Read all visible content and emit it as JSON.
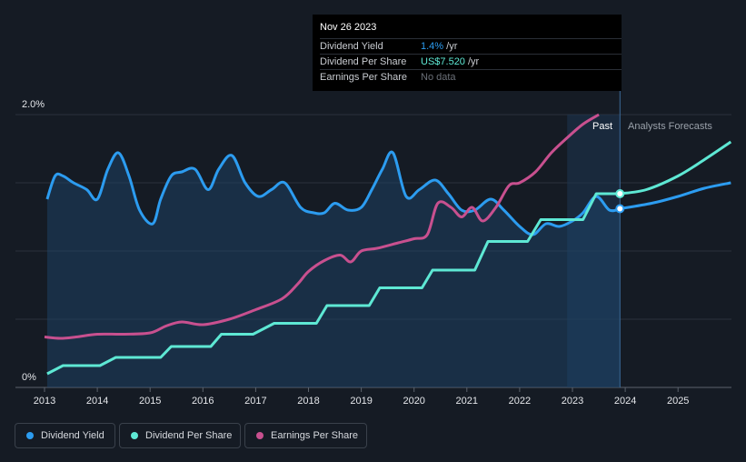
{
  "tooltip": {
    "date": "Nov 26 2023",
    "rows": [
      {
        "label": "Dividend Yield",
        "value": "1.4%",
        "unit": " /yr",
        "color": "#2c9cf0"
      },
      {
        "label": "Dividend Per Share",
        "value": "US$7.520",
        "unit": " /yr",
        "color": "#5ee8d4"
      },
      {
        "label": "Earnings Per Share",
        "value": "No data",
        "unit": "",
        "color": "#6b7078"
      }
    ]
  },
  "legend": [
    {
      "label": "Dividend Yield",
      "color": "#2c9cf0"
    },
    {
      "label": "Dividend Per Share",
      "color": "#5ee8d4"
    },
    {
      "label": "Earnings Per Share",
      "color": "#c8508f"
    }
  ],
  "chart_data": {
    "type": "line",
    "x_ticks": [
      "2013",
      "2014",
      "2015",
      "2016",
      "2017",
      "2018",
      "2019",
      "2020",
      "2021",
      "2022",
      "2023",
      "2024",
      "2025"
    ],
    "y_ticks": [
      "2.0%",
      "0%"
    ],
    "ylim": [
      0,
      2.0
    ],
    "regions": {
      "past": "Past",
      "forecast": "Analysts Forecasts"
    },
    "forecast_start": 2023.9,
    "past_shade_start": 2022.9,
    "series": [
      {
        "name": "Dividend Yield",
        "color": "#2c9cf0",
        "fill": true,
        "points": [
          [
            2013.05,
            1.38
          ],
          [
            2013.2,
            1.55
          ],
          [
            2013.35,
            1.55
          ],
          [
            2013.55,
            1.5
          ],
          [
            2013.8,
            1.45
          ],
          [
            2014.0,
            1.38
          ],
          [
            2014.2,
            1.6
          ],
          [
            2014.4,
            1.72
          ],
          [
            2014.6,
            1.55
          ],
          [
            2014.8,
            1.3
          ],
          [
            2015.05,
            1.2
          ],
          [
            2015.2,
            1.38
          ],
          [
            2015.4,
            1.55
          ],
          [
            2015.6,
            1.58
          ],
          [
            2015.85,
            1.6
          ],
          [
            2016.1,
            1.45
          ],
          [
            2016.3,
            1.6
          ],
          [
            2016.55,
            1.7
          ],
          [
            2016.8,
            1.5
          ],
          [
            2017.05,
            1.4
          ],
          [
            2017.3,
            1.45
          ],
          [
            2017.55,
            1.5
          ],
          [
            2017.85,
            1.32
          ],
          [
            2018.1,
            1.28
          ],
          [
            2018.3,
            1.28
          ],
          [
            2018.5,
            1.35
          ],
          [
            2018.75,
            1.3
          ],
          [
            2019.0,
            1.32
          ],
          [
            2019.2,
            1.45
          ],
          [
            2019.4,
            1.6
          ],
          [
            2019.6,
            1.72
          ],
          [
            2019.85,
            1.4
          ],
          [
            2020.1,
            1.45
          ],
          [
            2020.4,
            1.52
          ],
          [
            2020.65,
            1.42
          ],
          [
            2020.9,
            1.3
          ],
          [
            2021.15,
            1.3
          ],
          [
            2021.45,
            1.38
          ],
          [
            2021.7,
            1.3
          ],
          [
            2022.0,
            1.18
          ],
          [
            2022.25,
            1.12
          ],
          [
            2022.5,
            1.2
          ],
          [
            2022.75,
            1.18
          ],
          [
            2023.0,
            1.22
          ],
          [
            2023.2,
            1.28
          ],
          [
            2023.45,
            1.4
          ],
          [
            2023.7,
            1.3
          ],
          [
            2023.9,
            1.31
          ]
        ],
        "forecast": [
          [
            2023.9,
            1.31
          ],
          [
            2024.5,
            1.35
          ],
          [
            2025.0,
            1.4
          ],
          [
            2025.5,
            1.46
          ],
          [
            2026.0,
            1.5
          ]
        ]
      },
      {
        "name": "Dividend Per Share",
        "color": "#5ee8d4",
        "fill": false,
        "points": [
          [
            2013.05,
            0.1
          ],
          [
            2013.35,
            0.16
          ],
          [
            2014.05,
            0.16
          ],
          [
            2014.35,
            0.22
          ],
          [
            2015.2,
            0.22
          ],
          [
            2015.4,
            0.3
          ],
          [
            2016.15,
            0.3
          ],
          [
            2016.35,
            0.39
          ],
          [
            2016.95,
            0.39
          ],
          [
            2017.35,
            0.47
          ],
          [
            2018.15,
            0.47
          ],
          [
            2018.35,
            0.6
          ],
          [
            2019.15,
            0.6
          ],
          [
            2019.35,
            0.73
          ],
          [
            2020.15,
            0.73
          ],
          [
            2020.35,
            0.86
          ],
          [
            2021.15,
            0.86
          ],
          [
            2021.4,
            1.07
          ],
          [
            2022.15,
            1.07
          ],
          [
            2022.4,
            1.23
          ],
          [
            2023.2,
            1.23
          ],
          [
            2023.45,
            1.42
          ],
          [
            2023.9,
            1.42
          ]
        ],
        "forecast": [
          [
            2023.9,
            1.42
          ],
          [
            2024.4,
            1.45
          ],
          [
            2025.0,
            1.55
          ],
          [
            2025.5,
            1.67
          ],
          [
            2026.0,
            1.8
          ]
        ]
      },
      {
        "name": "Earnings Per Share",
        "color": "#c8508f",
        "fill": false,
        "points": [
          [
            2013.0,
            0.37
          ],
          [
            2013.3,
            0.36
          ],
          [
            2013.6,
            0.37
          ],
          [
            2014.0,
            0.39
          ],
          [
            2014.5,
            0.39
          ],
          [
            2015.0,
            0.4
          ],
          [
            2015.3,
            0.45
          ],
          [
            2015.6,
            0.48
          ],
          [
            2016.0,
            0.46
          ],
          [
            2016.5,
            0.5
          ],
          [
            2017.0,
            0.57
          ],
          [
            2017.5,
            0.65
          ],
          [
            2017.8,
            0.76
          ],
          [
            2018.0,
            0.85
          ],
          [
            2018.3,
            0.93
          ],
          [
            2018.6,
            0.97
          ],
          [
            2018.8,
            0.92
          ],
          [
            2019.0,
            1.0
          ],
          [
            2019.3,
            1.02
          ],
          [
            2019.7,
            1.06
          ],
          [
            2020.0,
            1.09
          ],
          [
            2020.25,
            1.12
          ],
          [
            2020.45,
            1.35
          ],
          [
            2020.7,
            1.32
          ],
          [
            2020.9,
            1.25
          ],
          [
            2021.1,
            1.32
          ],
          [
            2021.3,
            1.22
          ],
          [
            2021.55,
            1.32
          ],
          [
            2021.8,
            1.48
          ],
          [
            2022.0,
            1.5
          ],
          [
            2022.3,
            1.58
          ],
          [
            2022.6,
            1.72
          ],
          [
            2022.9,
            1.83
          ],
          [
            2023.2,
            1.93
          ],
          [
            2023.5,
            2.0
          ]
        ],
        "forecast": []
      }
    ]
  }
}
